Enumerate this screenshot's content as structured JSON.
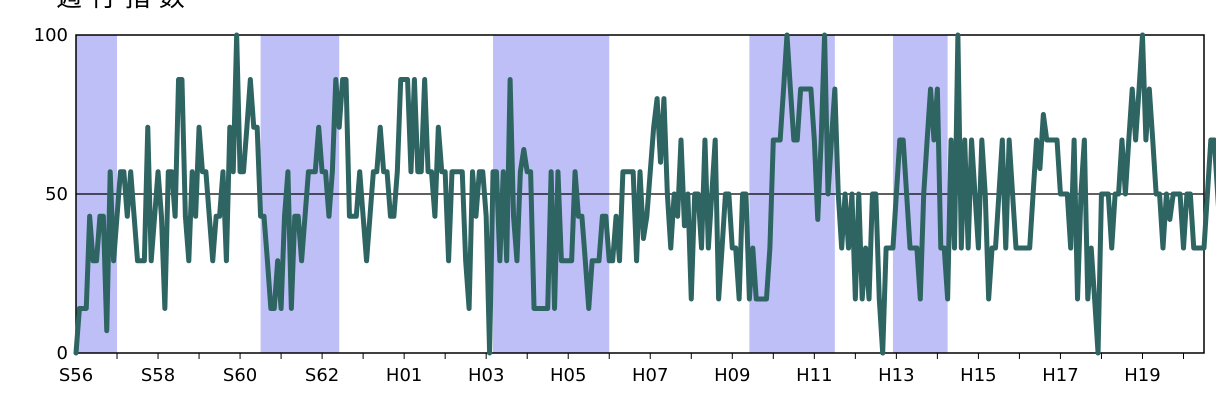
{
  "chart_data": {
    "type": "line",
    "title": "一週 行 指 数",
    "xlabel": "",
    "ylabel": "",
    "ylim": [
      0,
      100
    ],
    "yticks": [
      0,
      50,
      100
    ],
    "reference_line": 50,
    "x_tick_labels": [
      "S56",
      "S58",
      "S60",
      "S62",
      "H01",
      "H03",
      "H05",
      "H07",
      "H09",
      "H11",
      "H13",
      "H15",
      "H17",
      "H19"
    ],
    "x_range_months": [
      "1981-01",
      "2008-07"
    ],
    "recession_periods": [
      {
        "start": "1981-01",
        "end": "1982-01"
      },
      {
        "start": "1985-07",
        "end": "1987-06"
      },
      {
        "start": "1991-03",
        "end": "1994-01"
      },
      {
        "start": "1997-06",
        "end": "1999-07"
      },
      {
        "start": "2000-12",
        "end": "2002-04"
      }
    ],
    "shading_color": "#bfbff7",
    "line_color": "#2e6461",
    "series": [
      {
        "start": "1981-01",
        "values": [
          0,
          14,
          14,
          14,
          43,
          29,
          29,
          43,
          43,
          7,
          57,
          29,
          43,
          57,
          57,
          43,
          57,
          43,
          29,
          29,
          29,
          71,
          29,
          43,
          57,
          43,
          14,
          57,
          57,
          43,
          86,
          86,
          43,
          29,
          57,
          43,
          71,
          57,
          57,
          43,
          29,
          43,
          43,
          57,
          29,
          71,
          57,
          100,
          57,
          57,
          71,
          86,
          71,
          71,
          43,
          43,
          29,
          14,
          14,
          29,
          14,
          43,
          57,
          14,
          43,
          43,
          29,
          43,
          57,
          57,
          57,
          71,
          57,
          57,
          43,
          57,
          86,
          71,
          86,
          86,
          43,
          43,
          43,
          57,
          43,
          29,
          43,
          57,
          57,
          71,
          57,
          57,
          43,
          43,
          57,
          86,
          86,
          86,
          57,
          86,
          57,
          57,
          86,
          57,
          57,
          43,
          71,
          57,
          57,
          29,
          57,
          57,
          57,
          57,
          29,
          14,
          57,
          43,
          57,
          57,
          43,
          0,
          57,
          57,
          29,
          57,
          29,
          86,
          43,
          29,
          57,
          64,
          57,
          57,
          14,
          14,
          14,
          14,
          14,
          57,
          14,
          57,
          29,
          29,
          29,
          29,
          57,
          43,
          43,
          29,
          14,
          29,
          29,
          29,
          43,
          43,
          29,
          29,
          43,
          29,
          57,
          57,
          57,
          57,
          29,
          57,
          36,
          43,
          57,
          71,
          80,
          60,
          80,
          50,
          33,
          50,
          43,
          67,
          40,
          50,
          17,
          50,
          50,
          33,
          67,
          33,
          50,
          67,
          17,
          33,
          50,
          50,
          33,
          33,
          17,
          50,
          50,
          17,
          33,
          17,
          17,
          17,
          17,
          33,
          67,
          67,
          67,
          83,
          100,
          83,
          67,
          67,
          83,
          83,
          83,
          83,
          67,
          42,
          67,
          100,
          50,
          67,
          83,
          50,
          33,
          50,
          33,
          50,
          17,
          50,
          17,
          33,
          17,
          50,
          50,
          17,
          0,
          33,
          33,
          33,
          50,
          67,
          67,
          50,
          33,
          33,
          33,
          17,
          50,
          67,
          83,
          67,
          83,
          33,
          33,
          17,
          67,
          33,
          100,
          33,
          67,
          33,
          67,
          50,
          33,
          67,
          50,
          17,
          33,
          33,
          50,
          67,
          33,
          67,
          50,
          33,
          33,
          33,
          33,
          33,
          50,
          67,
          58,
          75,
          67,
          67,
          67,
          67,
          50,
          50,
          50,
          33,
          67,
          17,
          50,
          67,
          17,
          33,
          17,
          0,
          50,
          50,
          50,
          33,
          50,
          50,
          67,
          50,
          67,
          83,
          67,
          83,
          100,
          67,
          83,
          67,
          50,
          50,
          33,
          50,
          42,
          50,
          50,
          50,
          33,
          50,
          50,
          33,
          33,
          33,
          33,
          50,
          67,
          67,
          50,
          33,
          50,
          33,
          50,
          33,
          50,
          50,
          50,
          42,
          50,
          25,
          50,
          50,
          50,
          67,
          25,
          67,
          33,
          50,
          33,
          50,
          50,
          50,
          50
        ]
      }
    ]
  }
}
